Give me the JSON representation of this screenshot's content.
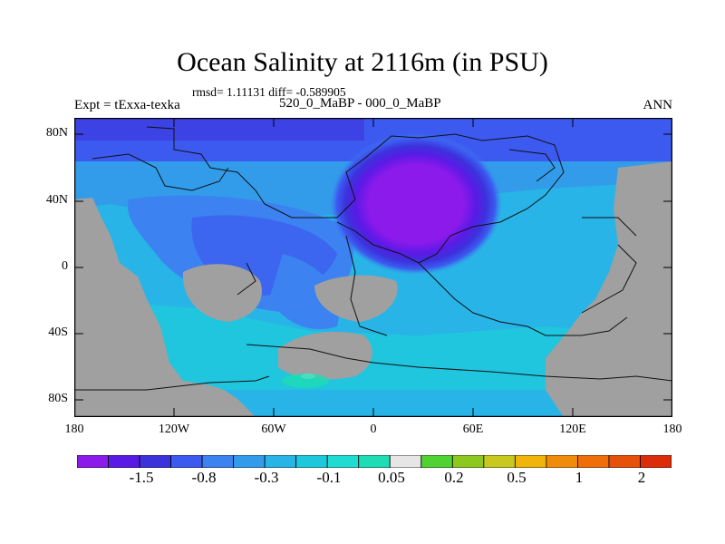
{
  "figure": {
    "title": "Ocean Salinity at 2116m (in PSU)",
    "stats": "rmsd= 1.11131 diff= -0.589905",
    "left_label": "Expt = tExxa-texka",
    "center_label": "520_0_MaBP - 000_0_MaBP",
    "right_label": "ANN"
  },
  "map": {
    "projection": "cylindrical equidistant",
    "lon_range": [
      -180,
      180
    ],
    "lat_range": [
      -90,
      90
    ],
    "land_color": "#a0a0a0",
    "y_ticks": [
      "80N",
      "40N",
      "0",
      "40S",
      "80S"
    ],
    "x_ticks": [
      "180",
      "120W",
      "60W",
      "0",
      "60E",
      "120E",
      "180"
    ],
    "features": [
      {
        "name": "salinity-minimum",
        "lon": 30,
        "lat": 40,
        "level_min": "< -1.5"
      },
      {
        "name": "salinity-maximum-patch",
        "lon": -40,
        "lat": -65,
        "level": "0.05"
      }
    ]
  },
  "colorbar": {
    "colors": [
      "#8c1aeb",
      "#5a1ae6",
      "#3c32dc",
      "#3c5af0",
      "#3c82f0",
      "#329ceb",
      "#28b4e6",
      "#1ec8dc",
      "#1edcd2",
      "#1edcb4",
      "#e6e6e6",
      "#50d232",
      "#8cc81e",
      "#c8c81e",
      "#f0b40a",
      "#f08c0a",
      "#f06e0a",
      "#e6500a",
      "#dc2d0a"
    ],
    "labels": [
      "-1.5",
      "-0.8",
      "-0.3",
      "-0.1",
      "0.05",
      "0.2",
      "0.5",
      "1",
      "2"
    ]
  }
}
